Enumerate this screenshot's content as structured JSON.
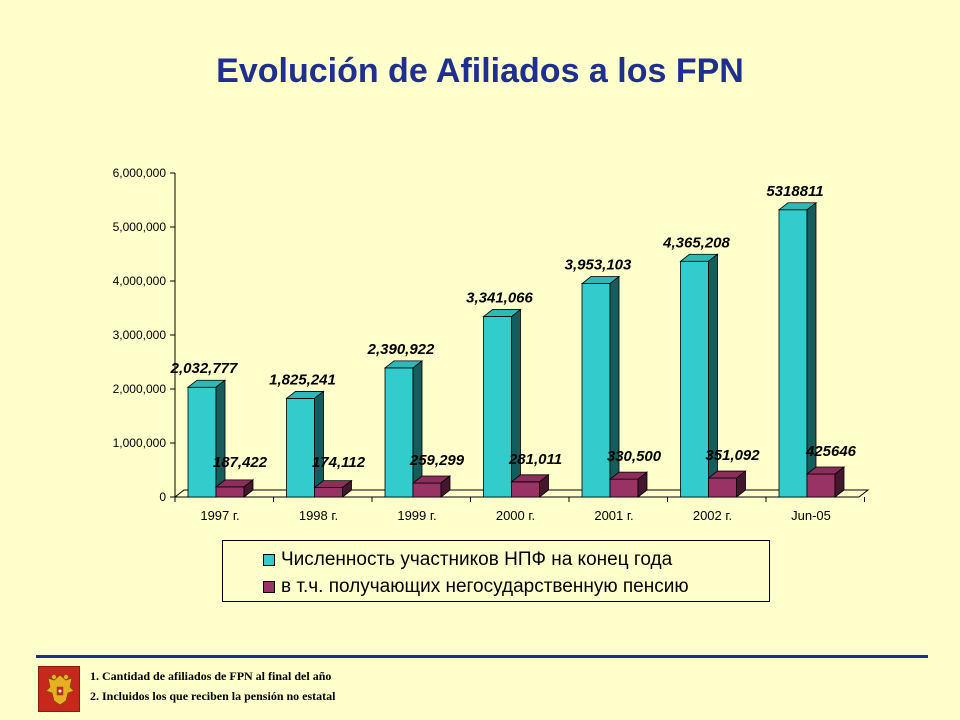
{
  "title": "Evolución de Afiliados a los FPN",
  "chart_data": {
    "type": "bar",
    "categories": [
      "1997 г.",
      "1998 г.",
      "1999 г.",
      "2000 г.",
      "2001 г.",
      "2002 г.",
      "Jun-05"
    ],
    "series": [
      {
        "name": "Численность участников НПФ на конец года",
        "color": "#33CCCC",
        "values": [
          2032777,
          1825241,
          2390922,
          3341066,
          3953103,
          4365208,
          5318811
        ],
        "labels": [
          "2,032,777",
          "1,825,241",
          "2,390,922",
          "3,341,066",
          "3,953,103",
          "4,365,208",
          "5318811"
        ]
      },
      {
        "name": "в т.ч. получающих негосударственную пенсию",
        "color": "#993366",
        "values": [
          187422,
          174112,
          259299,
          281011,
          330500,
          351092,
          425646
        ],
        "labels": [
          "187,422",
          "174,112",
          "259,299",
          "281,011",
          "330,500",
          "351,092",
          "425646"
        ]
      }
    ],
    "yticks": [
      "0",
      "1,000,000",
      "2,000,000",
      "3,000,000",
      "4,000,000",
      "5,000,000",
      "6,000,000"
    ],
    "ylim": [
      0,
      6000000
    ],
    "three_d": true,
    "grid": false,
    "legend_position": "bottom"
  },
  "footnotes": [
    "1. Cantidad de afiliados de FPN al final del año",
    "2. Incluidos los que reciben la pensión no estatal"
  ],
  "emblem_icon": "russian-coat-of-arms-icon"
}
